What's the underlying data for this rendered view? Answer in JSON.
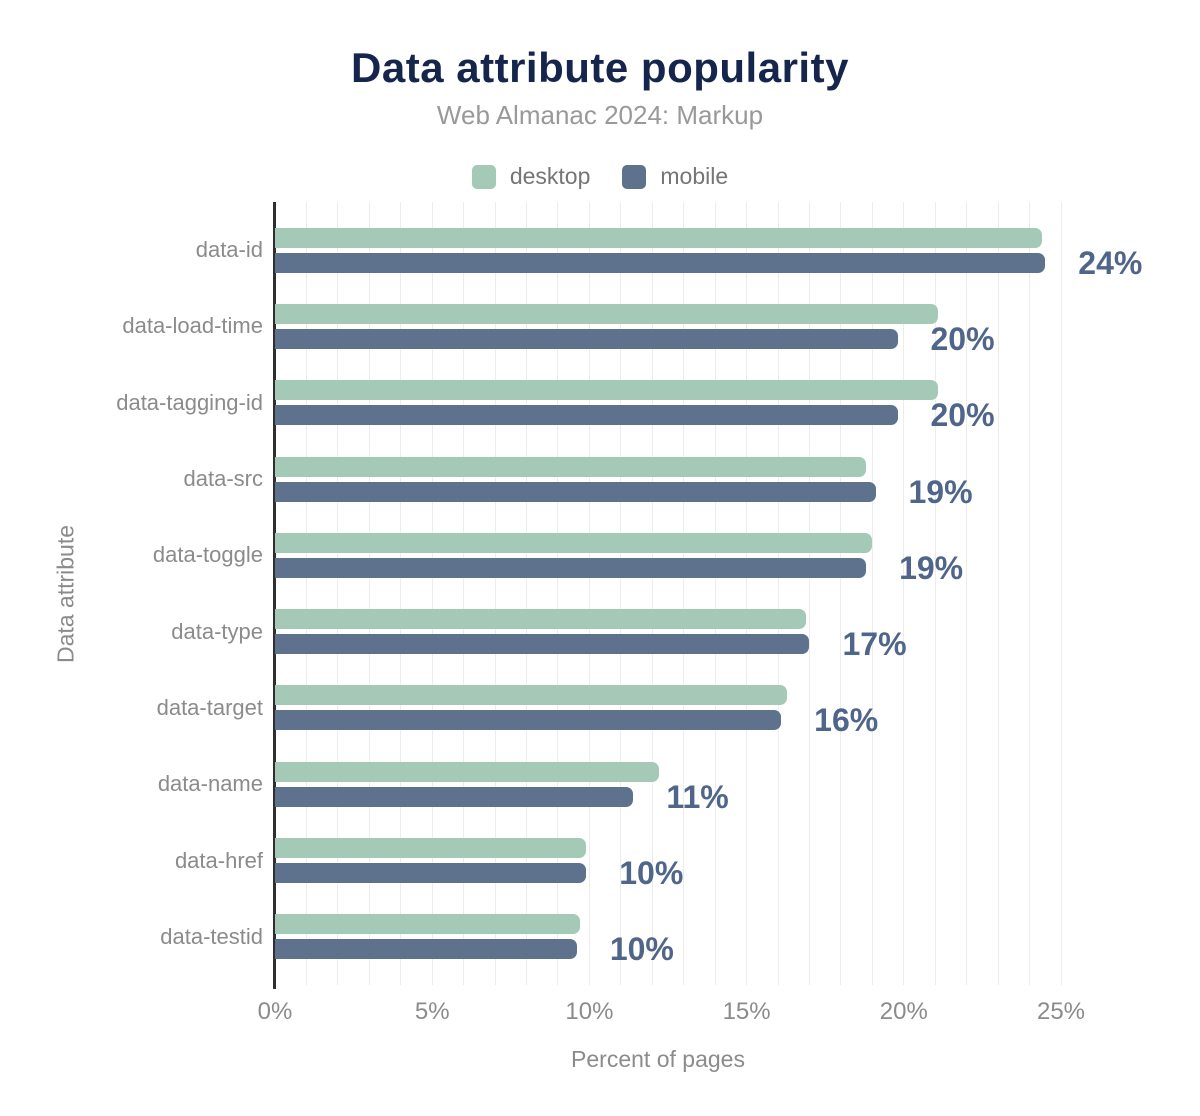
{
  "header": {
    "title": "Data attribute popularity",
    "subtitle": "Web Almanac 2024: Markup"
  },
  "colors": {
    "title": "#16254c",
    "subtitle": "#999999",
    "axis_text": "#8b8b8b",
    "legend_text": "#757575",
    "axis_line": "#2f2f2f",
    "gridline": "#ececec",
    "desktop": "#a4c9b7",
    "mobile": "#5e718d",
    "value_label": "#4f6589"
  },
  "chart_data": {
    "type": "bar",
    "orientation": "horizontal",
    "title": "Data attribute popularity",
    "subtitle": "Web Almanac 2024: Markup",
    "xlabel": "Percent of pages",
    "ylabel": "Data attribute",
    "xlim": [
      0,
      25
    ],
    "x_ticks": [
      0,
      5,
      10,
      15,
      20,
      25
    ],
    "x_tick_labels": [
      "0%",
      "5%",
      "10%",
      "15%",
      "20%",
      "25%"
    ],
    "grid": "vertical gridlines every 1%",
    "legend_position": "top-center",
    "categories": [
      "data-id",
      "data-load-time",
      "data-tagging-id",
      "data-src",
      "data-toggle",
      "data-type",
      "data-target",
      "data-name",
      "data-href",
      "data-testid"
    ],
    "series": [
      {
        "name": "desktop",
        "color": "#a4c9b7",
        "values": [
          24.4,
          21.1,
          21.1,
          18.8,
          19.0,
          16.9,
          16.3,
          12.2,
          9.9,
          9.7
        ]
      },
      {
        "name": "mobile",
        "color": "#5e718d",
        "values": [
          24.5,
          19.8,
          19.8,
          19.1,
          18.8,
          17.0,
          16.1,
          11.4,
          9.9,
          9.6
        ]
      }
    ],
    "data_labels": [
      "24%",
      "20%",
      "20%",
      "19%",
      "19%",
      "17%",
      "16%",
      "11%",
      "10%",
      "10%"
    ]
  }
}
